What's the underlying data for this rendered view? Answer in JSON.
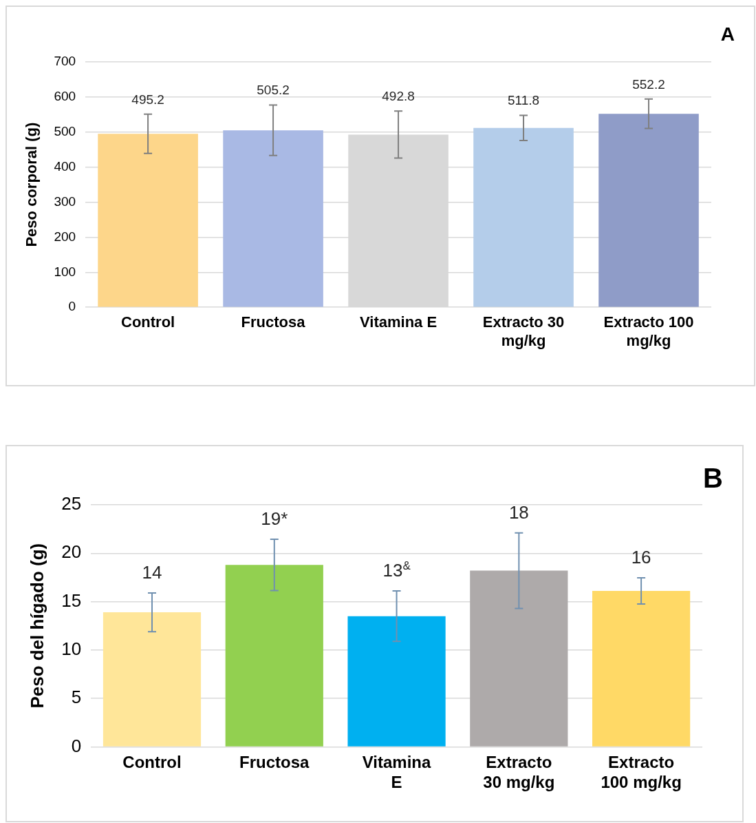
{
  "chart_data": [
    {
      "type": "bar",
      "ylabel": "Peso corporal (g)",
      "annotations": [
        "A"
      ],
      "categories": [
        "Control",
        "Fructosa",
        "Vitamina E",
        "Extracto 30 mg/kg",
        "Extracto 100 mg/kg"
      ],
      "values": [
        495.2,
        505.2,
        492.8,
        511.8,
        552.2
      ],
      "colors": [
        "#fdd68a",
        "#a9b9e4",
        "#d8d8d8",
        "#b4cdea",
        "#8f9cc8"
      ],
      "errors": [
        56,
        72,
        67,
        36,
        42
      ],
      "data_labels": true,
      "ylim": [
        0,
        700
      ],
      "yticks": [
        0,
        100,
        200,
        300,
        400,
        500,
        600,
        700
      ],
      "grid": "y",
      "legend": false
    },
    {
      "type": "bar",
      "ylabel": "Peso del hígado (g)",
      "annotations": [
        "B"
      ],
      "categories": [
        "Control",
        "Fructosa",
        "Vitamina E",
        "Extracto 30 mg/kg",
        "Extracto 100 mg/kg"
      ],
      "values": [
        13.9,
        18.8,
        13.5,
        18.2,
        16.1
      ],
      "colors": [
        "#ffe699",
        "#92d050",
        "#00b0f0",
        "#aeaaaa",
        "#ffd966"
      ],
      "errors": [
        2.0,
        2.65,
        2.6,
        3.9,
        1.35
      ],
      "value_labels": [
        "14",
        "19*",
        "13$^{&}$",
        "18",
        "16"
      ],
      "ylim": [
        0,
        25
      ],
      "yticks": [
        0,
        5,
        10,
        15,
        20,
        25
      ],
      "grid": "y",
      "legend": false
    }
  ]
}
